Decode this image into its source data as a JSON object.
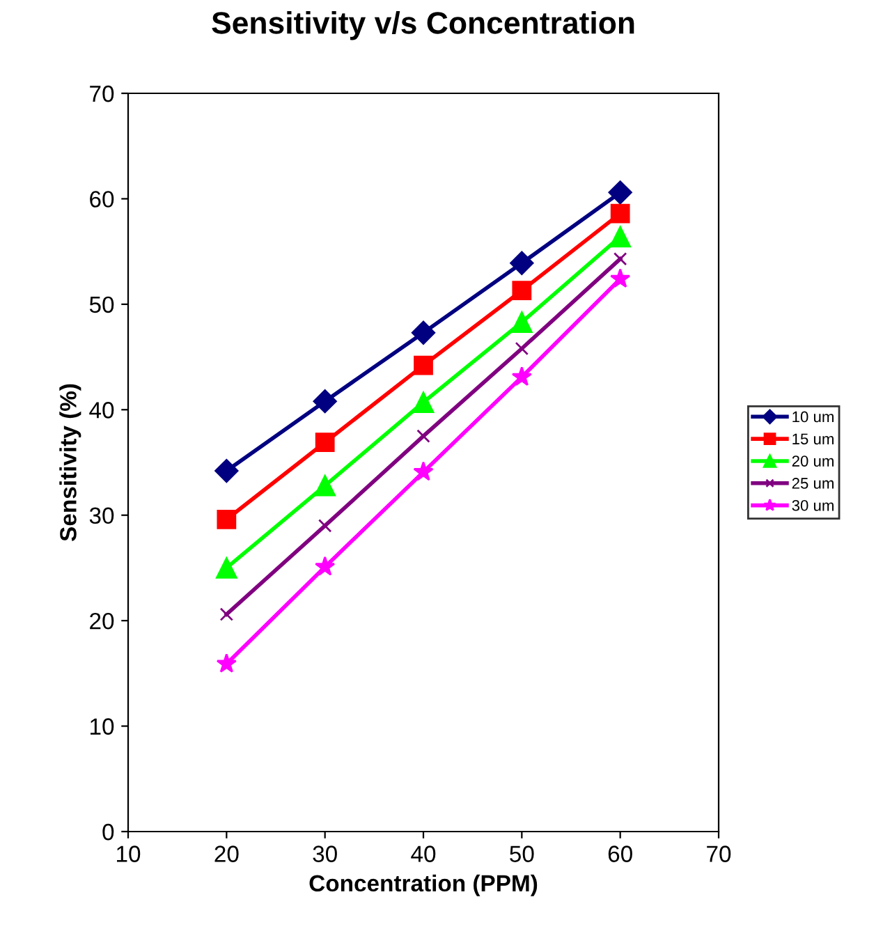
{
  "chart_data": {
    "type": "line",
    "title": "Sensitivity v/s Concentration",
    "xlabel": "Concentration (PPM)",
    "ylabel": "Sensitivity (%)",
    "x": [
      20,
      30,
      40,
      50,
      60
    ],
    "series": [
      {
        "name": "10 um",
        "color": "#000080",
        "marker": "diamond",
        "values": [
          34.2,
          40.8,
          47.3,
          53.9,
          60.6
        ]
      },
      {
        "name": "15 um",
        "color": "#ff0000",
        "marker": "square",
        "values": [
          29.6,
          36.9,
          44.2,
          51.3,
          58.6
        ]
      },
      {
        "name": "20 um",
        "color": "#00ff00",
        "marker": "triangle",
        "values": [
          25.0,
          32.8,
          40.7,
          48.3,
          56.4
        ]
      },
      {
        "name": "25 um",
        "color": "#800080",
        "marker": "cross",
        "values": [
          20.6,
          29.0,
          37.5,
          45.8,
          54.3
        ]
      },
      {
        "name": "30 um",
        "color": "#ff00ff",
        "marker": "star",
        "values": [
          15.9,
          25.1,
          34.1,
          43.1,
          52.4
        ]
      }
    ],
    "xlim": [
      10,
      70
    ],
    "xticks": [
      10,
      20,
      30,
      40,
      50,
      60,
      70
    ],
    "ylim": [
      0,
      70
    ],
    "yticks": [
      0,
      10,
      20,
      30,
      40,
      50,
      60,
      70
    ],
    "grid": false,
    "legend": "right"
  }
}
